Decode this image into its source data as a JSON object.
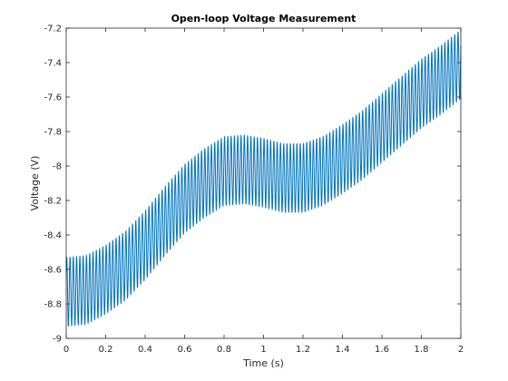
{
  "chart_data": {
    "type": "line",
    "title": "Open-loop Voltage Measurement",
    "xlabel": "Time (s)",
    "ylabel": "Voltage (V)",
    "xlim": [
      0,
      2
    ],
    "ylim": [
      -9,
      -7.2
    ],
    "xticks": [
      0,
      0.2,
      0.4,
      0.6,
      0.8,
      1,
      1.2,
      1.4,
      1.6,
      1.8,
      2
    ],
    "xtick_labels": [
      "0",
      "0.2",
      "0.4",
      "0.6",
      "0.8",
      "1",
      "1.2",
      "1.4",
      "1.6",
      "1.8",
      "2"
    ],
    "yticks": [
      -9,
      -8.8,
      -8.6,
      -8.4,
      -8.2,
      -8,
      -7.8,
      -7.6,
      -7.4,
      -7.2
    ],
    "ytick_labels": [
      "-9",
      "-8.8",
      "-8.6",
      "-8.4",
      "-8.2",
      "-8",
      "-7.8",
      "-7.6",
      "-7.4",
      "-7.2"
    ],
    "grid": false,
    "legend": "none",
    "series_color": "#0072BD",
    "oscillation": {
      "frequency_hz": 60,
      "amplitude": 0.2
    },
    "series": [
      {
        "x": [
          0,
          0.1,
          0.2,
          0.3,
          0.4,
          0.5,
          0.6,
          0.7,
          0.8,
          0.9,
          1.0,
          1.1,
          1.2,
          1.3,
          1.4,
          1.5,
          1.6,
          1.7,
          1.8,
          1.9,
          2.0
        ],
        "y": [
          -8.73,
          -8.72,
          -8.66,
          -8.58,
          -8.46,
          -8.32,
          -8.19,
          -8.1,
          -8.03,
          -8.02,
          -8.04,
          -8.07,
          -8.07,
          -8.03,
          -7.96,
          -7.88,
          -7.78,
          -7.68,
          -7.58,
          -7.5,
          -7.41
        ]
      }
    ]
  }
}
